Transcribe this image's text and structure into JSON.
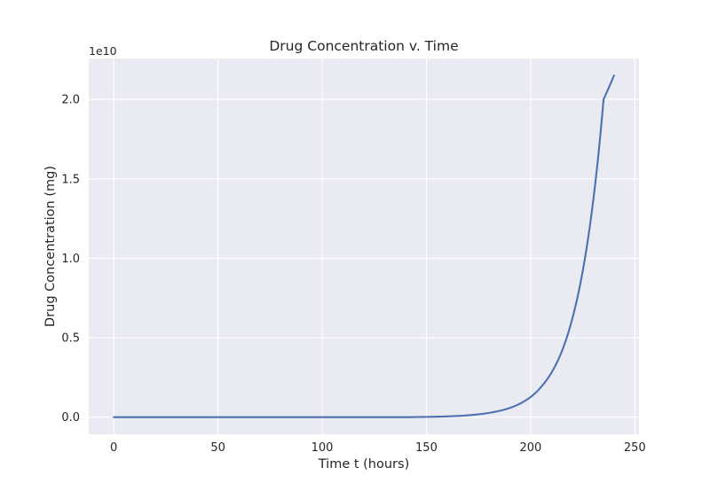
{
  "chart_data": {
    "type": "line",
    "title": "Drug Concentration v. Time",
    "xlabel": "Time t (hours)",
    "ylabel": "Drug Concentration (mg)",
    "y_offset_label": "1e10",
    "xlim": [
      -12,
      252
    ],
    "ylim": [
      -0.1075,
      2.2575
    ],
    "x_ticks": [
      0,
      50,
      100,
      150,
      200,
      250
    ],
    "x_tick_labels": [
      "0",
      "50",
      "100",
      "150",
      "200",
      "250"
    ],
    "y_ticks": [
      0.0,
      0.5,
      1.0,
      1.5,
      2.0
    ],
    "y_tick_labels": [
      "0.0",
      "0.5",
      "1.0",
      "1.5",
      "2.0"
    ],
    "grid": true,
    "colors": {
      "background": "#eaeaf2",
      "grid": "#ffffff",
      "line": "#4c72b0"
    },
    "series": [
      {
        "x": [
          0,
          20,
          40,
          60,
          80,
          100,
          120,
          140,
          150,
          160,
          170,
          175,
          180,
          185,
          190,
          195,
          200,
          205,
          210,
          215,
          220,
          225,
          230,
          235,
          240
        ],
        "y": [
          0.0,
          0.0,
          0.0,
          0.0,
          0.0,
          0.0,
          0.0,
          0.0,
          0.002,
          0.005,
          0.012,
          0.018,
          0.027,
          0.04,
          0.058,
          0.086,
          0.127,
          0.19,
          0.28,
          0.415,
          0.62,
          0.92,
          1.36,
          2.0,
          2.15
        ]
      }
    ]
  }
}
